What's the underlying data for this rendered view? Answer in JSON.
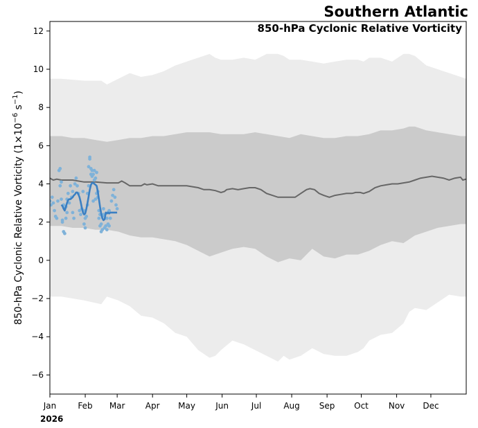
{
  "title": "Southern Atlantic",
  "subtitle": "850-hPa Cyclonic Relative Vorticity",
  "ylabel_main": "850-hPa Cyclonic Relative Vorticity (1×10",
  "ylabel_exp1": "−6",
  "ylabel_mid": " s",
  "ylabel_exp2": "−1",
  "ylabel_end": ")",
  "year_label": "2026",
  "colors": {
    "outer_band": "#ececec",
    "inner_band": "#cbcbcb",
    "climatology_line": "#666666",
    "observed_points": "#7fb2d9",
    "observed_smooth": "#3a7fc2"
  },
  "chart_data": {
    "type": "line",
    "xlim": [
      0,
      365
    ],
    "ylim": [
      -7,
      12.5
    ],
    "grid": false,
    "x_ticks": [
      {
        "label": "Jan",
        "day": 0
      },
      {
        "label": "Feb",
        "day": 31
      },
      {
        "label": "Mar",
        "day": 59
      },
      {
        "label": "Apr",
        "day": 90
      },
      {
        "label": "May",
        "day": 120
      },
      {
        "label": "Jun",
        "day": 151
      },
      {
        "label": "Jul",
        "day": 181
      },
      {
        "label": "Aug",
        "day": 212
      },
      {
        "label": "Sep",
        "day": 243
      },
      {
        "label": "Oct",
        "day": 273
      },
      {
        "label": "Nov",
        "day": 304
      },
      {
        "label": "Dec",
        "day": 334
      }
    ],
    "y_ticks": [
      {
        "label": "−6",
        "value": -6
      },
      {
        "label": "−4",
        "value": -4
      },
      {
        "label": "−2",
        "value": -2
      },
      {
        "label": "0",
        "value": 0
      },
      {
        "label": "2",
        "value": 2
      },
      {
        "label": "4",
        "value": 4
      },
      {
        "label": "6",
        "value": 6
      },
      {
        "label": "8",
        "value": 8
      },
      {
        "label": "10",
        "value": 10
      },
      {
        "label": "12",
        "value": 12
      }
    ],
    "outer_band": {
      "x": [
        0,
        10,
        30,
        45,
        50,
        60,
        70,
        80,
        90,
        100,
        110,
        120,
        130,
        140,
        145,
        150,
        160,
        170,
        180,
        190,
        200,
        205,
        210,
        220,
        230,
        240,
        250,
        260,
        270,
        275,
        280,
        290,
        300,
        310,
        315,
        320,
        330,
        335,
        340,
        350,
        360,
        365
      ],
      "upper": [
        9.5,
        9.5,
        9.4,
        9.4,
        9.2,
        9.5,
        9.8,
        9.6,
        9.7,
        9.9,
        10.2,
        10.4,
        10.6,
        10.8,
        10.6,
        10.5,
        10.5,
        10.6,
        10.5,
        10.8,
        10.8,
        10.7,
        10.5,
        10.5,
        10.4,
        10.3,
        10.4,
        10.5,
        10.5,
        10.4,
        10.6,
        10.6,
        10.4,
        10.8,
        10.8,
        10.7,
        10.2,
        10.1,
        10.0,
        9.8,
        9.6,
        9.5
      ],
      "lower": [
        -1.9,
        -1.9,
        -2.1,
        -2.3,
        -1.9,
        -2.1,
        -2.4,
        -2.9,
        -3.0,
        -3.3,
        -3.8,
        -4.0,
        -4.7,
        -5.1,
        -5.0,
        -4.7,
        -4.2,
        -4.4,
        -4.7,
        -5.0,
        -5.3,
        -5.0,
        -5.2,
        -5.0,
        -4.6,
        -4.9,
        -5.0,
        -5.0,
        -4.8,
        -4.6,
        -4.2,
        -3.9,
        -3.8,
        -3.3,
        -2.7,
        -2.5,
        -2.6,
        -2.4,
        -2.2,
        -1.8,
        -1.9,
        -1.9
      ]
    },
    "inner_band": {
      "x": [
        0,
        10,
        20,
        30,
        40,
        50,
        60,
        70,
        80,
        90,
        100,
        110,
        120,
        130,
        140,
        150,
        160,
        170,
        180,
        190,
        200,
        210,
        220,
        230,
        240,
        250,
        260,
        270,
        280,
        290,
        300,
        310,
        315,
        320,
        330,
        340,
        350,
        360,
        365
      ],
      "upper": [
        6.5,
        6.5,
        6.4,
        6.4,
        6.3,
        6.2,
        6.3,
        6.4,
        6.4,
        6.5,
        6.5,
        6.6,
        6.7,
        6.7,
        6.7,
        6.6,
        6.6,
        6.6,
        6.7,
        6.6,
        6.5,
        6.4,
        6.6,
        6.5,
        6.4,
        6.4,
        6.5,
        6.5,
        6.6,
        6.8,
        6.8,
        6.9,
        7.0,
        7.0,
        6.8,
        6.7,
        6.6,
        6.5,
        6.5
      ],
      "lower": [
        1.8,
        1.8,
        1.7,
        1.7,
        1.6,
        1.6,
        1.5,
        1.3,
        1.2,
        1.2,
        1.1,
        1.0,
        0.8,
        0.5,
        0.2,
        0.4,
        0.6,
        0.7,
        0.6,
        0.2,
        -0.1,
        0.1,
        0.0,
        0.6,
        0.2,
        0.1,
        0.3,
        0.3,
        0.5,
        0.8,
        1.0,
        0.9,
        1.1,
        1.3,
        1.5,
        1.7,
        1.8,
        1.9,
        1.9
      ]
    },
    "climatology": {
      "x": [
        0,
        3,
        6,
        10,
        20,
        30,
        40,
        50,
        60,
        63,
        66,
        70,
        80,
        83,
        85,
        90,
        95,
        100,
        110,
        120,
        130,
        135,
        140,
        145,
        150,
        153,
        155,
        160,
        165,
        170,
        175,
        180,
        185,
        190,
        195,
        200,
        205,
        210,
        215,
        220,
        225,
        228,
        232,
        236,
        240,
        245,
        250,
        255,
        260,
        265,
        268,
        272,
        275,
        280,
        285,
        290,
        295,
        300,
        305,
        310,
        315,
        320,
        325,
        330,
        335,
        340,
        345,
        350,
        355,
        360,
        362,
        365
      ],
      "y": [
        4.3,
        4.2,
        4.25,
        4.2,
        4.2,
        4.1,
        4.1,
        4.05,
        4.05,
        4.15,
        4.05,
        3.9,
        3.9,
        4.0,
        3.95,
        4.0,
        3.9,
        3.9,
        3.9,
        3.9,
        3.8,
        3.7,
        3.7,
        3.65,
        3.55,
        3.6,
        3.7,
        3.75,
        3.7,
        3.75,
        3.8,
        3.8,
        3.7,
        3.5,
        3.4,
        3.3,
        3.3,
        3.3,
        3.3,
        3.5,
        3.7,
        3.75,
        3.7,
        3.5,
        3.4,
        3.3,
        3.4,
        3.45,
        3.5,
        3.5,
        3.55,
        3.55,
        3.5,
        3.6,
        3.8,
        3.9,
        3.95,
        4.0,
        4.0,
        4.05,
        4.1,
        4.2,
        4.3,
        4.35,
        4.4,
        4.35,
        4.3,
        4.2,
        4.3,
        4.35,
        4.2,
        4.25
      ]
    },
    "observed_points": {
      "x": [
        0,
        1,
        2,
        3,
        4,
        5,
        6,
        7,
        8,
        9,
        9,
        10,
        10,
        11,
        11,
        12,
        12,
        13,
        13,
        14,
        14,
        15,
        15,
        16,
        17,
        18,
        19,
        20,
        20,
        21,
        22,
        23,
        24,
        25,
        26,
        27,
        28,
        29,
        30,
        30,
        31,
        31,
        32,
        33,
        33,
        34,
        34,
        35,
        35,
        36,
        36,
        37,
        37,
        38,
        38,
        39,
        39,
        40,
        40,
        41,
        41,
        42,
        42,
        43,
        43,
        44,
        44,
        45,
        45,
        46,
        46,
        47,
        47,
        48,
        49,
        50,
        50,
        51,
        51,
        52,
        52,
        53,
        54,
        55,
        56,
        57,
        58,
        59
      ],
      "y": [
        3.1,
        2.9,
        3.3,
        3.0,
        2.6,
        2.3,
        2.2,
        3.1,
        4.7,
        4.8,
        3.9,
        4.1,
        3.2,
        2.1,
        2.0,
        1.5,
        2.9,
        1.4,
        2.7,
        2.8,
        2.2,
        3.2,
        2.5,
        3.5,
        3.0,
        3.9,
        3.3,
        3.6,
        2.5,
        2.2,
        4.0,
        4.3,
        3.9,
        3.5,
        2.6,
        2.4,
        2.7,
        3.6,
        2.6,
        1.9,
        2.2,
        1.7,
        2.3,
        3.5,
        2.9,
        3.9,
        4.9,
        5.4,
        5.3,
        4.5,
        4.8,
        4.4,
        4.7,
        3.1,
        4.5,
        4.7,
        4.2,
        3.2,
        4.3,
        4.6,
        3.5,
        3.3,
        3.6,
        2.2,
        2.6,
        1.8,
        2.4,
        1.5,
        1.9,
        2.3,
        1.6,
        2.4,
        2.7,
        1.7,
        1.8,
        1.6,
        2.2,
        2.5,
        1.9,
        1.8,
        2.6,
        2.2,
        3.1,
        3.4,
        3.7,
        3.3,
        2.9,
        2.7
      ]
    },
    "observed_smooth": {
      "x": [
        10,
        11,
        12,
        13,
        14,
        15,
        16,
        17,
        18,
        19,
        20,
        21,
        22,
        23,
        24,
        25,
        26,
        27,
        28,
        29,
        30,
        31,
        32,
        33,
        34,
        35,
        36,
        37,
        38,
        39,
        40,
        41,
        42,
        43,
        44,
        45,
        46,
        47,
        48,
        49,
        50,
        51,
        52,
        53,
        54,
        55,
        56,
        57,
        58,
        59
      ],
      "y": [
        2.9,
        2.85,
        2.7,
        2.6,
        2.8,
        3.0,
        3.15,
        3.2,
        3.2,
        3.25,
        3.3,
        3.4,
        3.45,
        3.55,
        3.55,
        3.45,
        3.3,
        3.05,
        2.75,
        2.5,
        2.4,
        2.45,
        2.7,
        3.0,
        3.35,
        3.7,
        3.95,
        4.05,
        4.05,
        4.0,
        3.95,
        3.9,
        3.6,
        3.2,
        2.8,
        2.45,
        2.2,
        2.1,
        2.15,
        2.5,
        2.45,
        2.5,
        2.45,
        2.5,
        2.5,
        2.5,
        2.5,
        2.5,
        2.5,
        2.5
      ]
    }
  }
}
